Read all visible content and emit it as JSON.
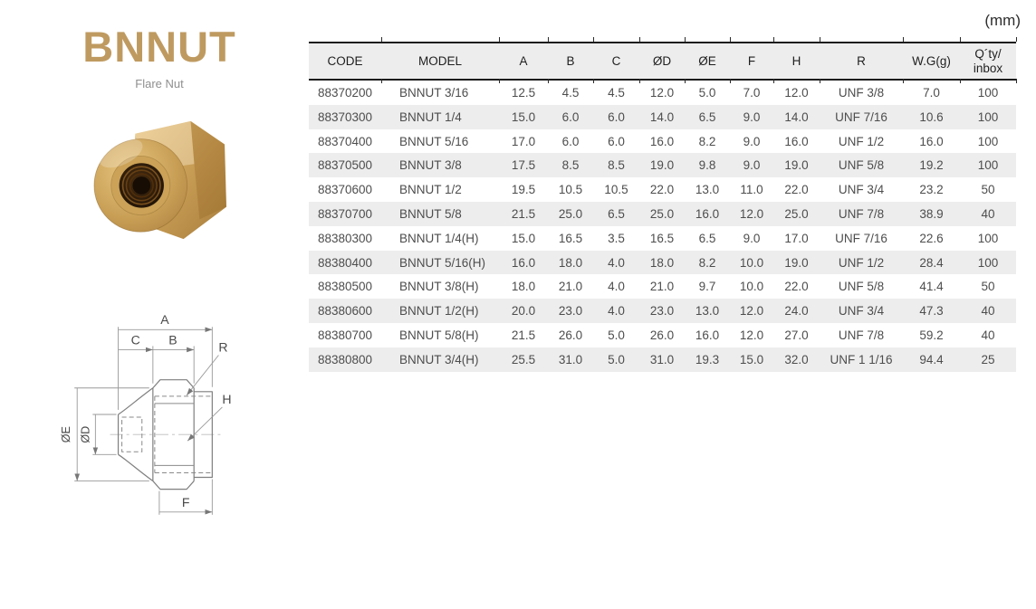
{
  "page": {
    "unit_label": "(mm)"
  },
  "colors": {
    "brand_gold": "#bf9a60",
    "stripe_gray": "#ededed",
    "rule_black": "#1c1c1c"
  },
  "product": {
    "title": "BNNUT",
    "subtitle": "Flare Nut"
  },
  "diagram": {
    "labels": {
      "a": "A",
      "b": "B",
      "c": "C",
      "r": "R",
      "h": "H",
      "f": "F",
      "dia_outer": "ØE",
      "dia_inner": "ØD"
    }
  },
  "table": {
    "columns": [
      "CODE",
      "MODEL",
      "A",
      "B",
      "C",
      "ØD",
      "ØE",
      "F",
      "H",
      "R",
      "W.G(g)",
      "Q´ty/\ninbox"
    ],
    "rows": [
      [
        "88370200",
        "BNNUT 3/16",
        "12.5",
        "4.5",
        "4.5",
        "12.0",
        "5.0",
        "7.0",
        "12.0",
        "UNF 3/8",
        "7.0",
        "100"
      ],
      [
        "88370300",
        "BNNUT 1/4",
        "15.0",
        "6.0",
        "6.0",
        "14.0",
        "6.5",
        "9.0",
        "14.0",
        "UNF 7/16",
        "10.6",
        "100"
      ],
      [
        "88370400",
        "BNNUT 5/16",
        "17.0",
        "6.0",
        "6.0",
        "16.0",
        "8.2",
        "9.0",
        "16.0",
        "UNF 1/2",
        "16.0",
        "100"
      ],
      [
        "88370500",
        "BNNUT 3/8",
        "17.5",
        "8.5",
        "8.5",
        "19.0",
        "9.8",
        "9.0",
        "19.0",
        "UNF 5/8",
        "19.2",
        "100"
      ],
      [
        "88370600",
        "BNNUT 1/2",
        "19.5",
        "10.5",
        "10.5",
        "22.0",
        "13.0",
        "11.0",
        "22.0",
        "UNF 3/4",
        "23.2",
        "50"
      ],
      [
        "88370700",
        "BNNUT 5/8",
        "21.5",
        "25.0",
        "6.5",
        "25.0",
        "16.0",
        "12.0",
        "25.0",
        "UNF 7/8",
        "38.9",
        "40"
      ],
      [
        "88380300",
        "BNNUT 1/4(H)",
        "15.0",
        "16.5",
        "3.5",
        "16.5",
        "6.5",
        "9.0",
        "17.0",
        "UNF 7/16",
        "22.6",
        "100"
      ],
      [
        "88380400",
        "BNNUT 5/16(H)",
        "16.0",
        "18.0",
        "4.0",
        "18.0",
        "8.2",
        "10.0",
        "19.0",
        "UNF 1/2",
        "28.4",
        "100"
      ],
      [
        "88380500",
        "BNNUT 3/8(H)",
        "18.0",
        "21.0",
        "4.0",
        "21.0",
        "9.7",
        "10.0",
        "22.0",
        "UNF 5/8",
        "41.4",
        "50"
      ],
      [
        "88380600",
        "BNNUT 1/2(H)",
        "20.0",
        "23.0",
        "4.0",
        "23.0",
        "13.0",
        "12.0",
        "24.0",
        "UNF 3/4",
        "47.3",
        "40"
      ],
      [
        "88380700",
        "BNNUT 5/8(H)",
        "21.5",
        "26.0",
        "5.0",
        "26.0",
        "16.0",
        "12.0",
        "27.0",
        "UNF 7/8",
        "59.2",
        "40"
      ],
      [
        "88380800",
        "BNNUT 3/4(H)",
        "25.5",
        "31.0",
        "5.0",
        "31.0",
        "19.3",
        "15.0",
        "32.0",
        "UNF 1 1/16",
        "94.4",
        "25"
      ]
    ]
  }
}
